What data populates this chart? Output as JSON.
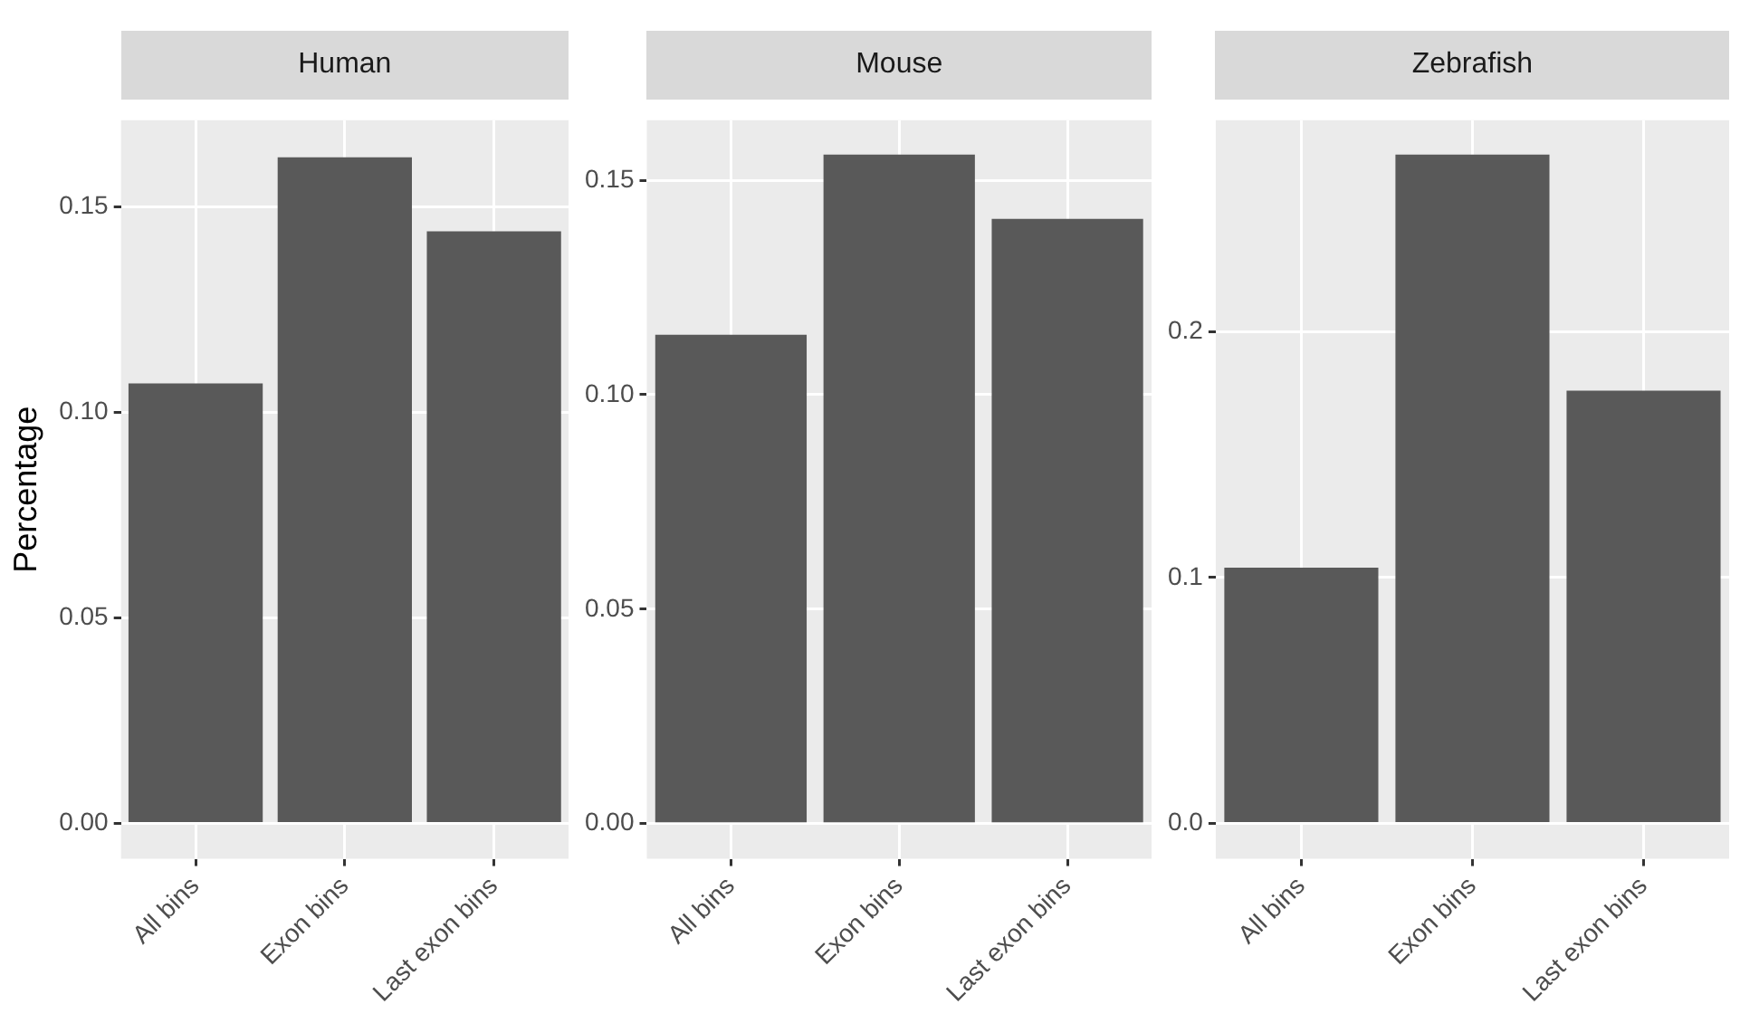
{
  "chart_data": [
    {
      "type": "bar",
      "title": "Human",
      "ylabel": "Percentage",
      "categories": [
        "All bins",
        "Exon bins",
        "Last exon bins"
      ],
      "values": [
        0.107,
        0.162,
        0.144
      ],
      "color": "#595959",
      "ylim": [
        -0.0086,
        0.171
      ],
      "yticks": [
        {
          "value": 0,
          "label": "0.00"
        },
        {
          "value": 0.05,
          "label": "0.05"
        },
        {
          "value": 0.1,
          "label": "0.10"
        },
        {
          "value": 0.15,
          "label": "0.15"
        }
      ],
      "grid": true
    },
    {
      "type": "bar",
      "title": "Mouse",
      "categories": [
        "All bins",
        "Exon bins",
        "Last exon bins"
      ],
      "values": [
        0.114,
        0.156,
        0.141
      ],
      "color": "#595959",
      "ylim": [
        -0.0082,
        0.164
      ],
      "yticks": [
        {
          "value": 0,
          "label": "0.00"
        },
        {
          "value": 0.05,
          "label": "0.05"
        },
        {
          "value": 0.1,
          "label": "0.10"
        },
        {
          "value": 0.15,
          "label": "0.15"
        }
      ],
      "grid": true
    },
    {
      "type": "bar",
      "title": "Zebrafish",
      "categories": [
        "All bins",
        "Exon bins",
        "Last exon bins"
      ],
      "values": [
        0.104,
        0.272,
        0.176
      ],
      "color": "#595959",
      "ylim": [
        -0.0144,
        0.286
      ],
      "yticks": [
        {
          "value": 0,
          "label": "0.0"
        },
        {
          "value": 0.1,
          "label": "0.1"
        },
        {
          "value": 0.2,
          "label": "0.2"
        }
      ],
      "grid": true
    }
  ]
}
